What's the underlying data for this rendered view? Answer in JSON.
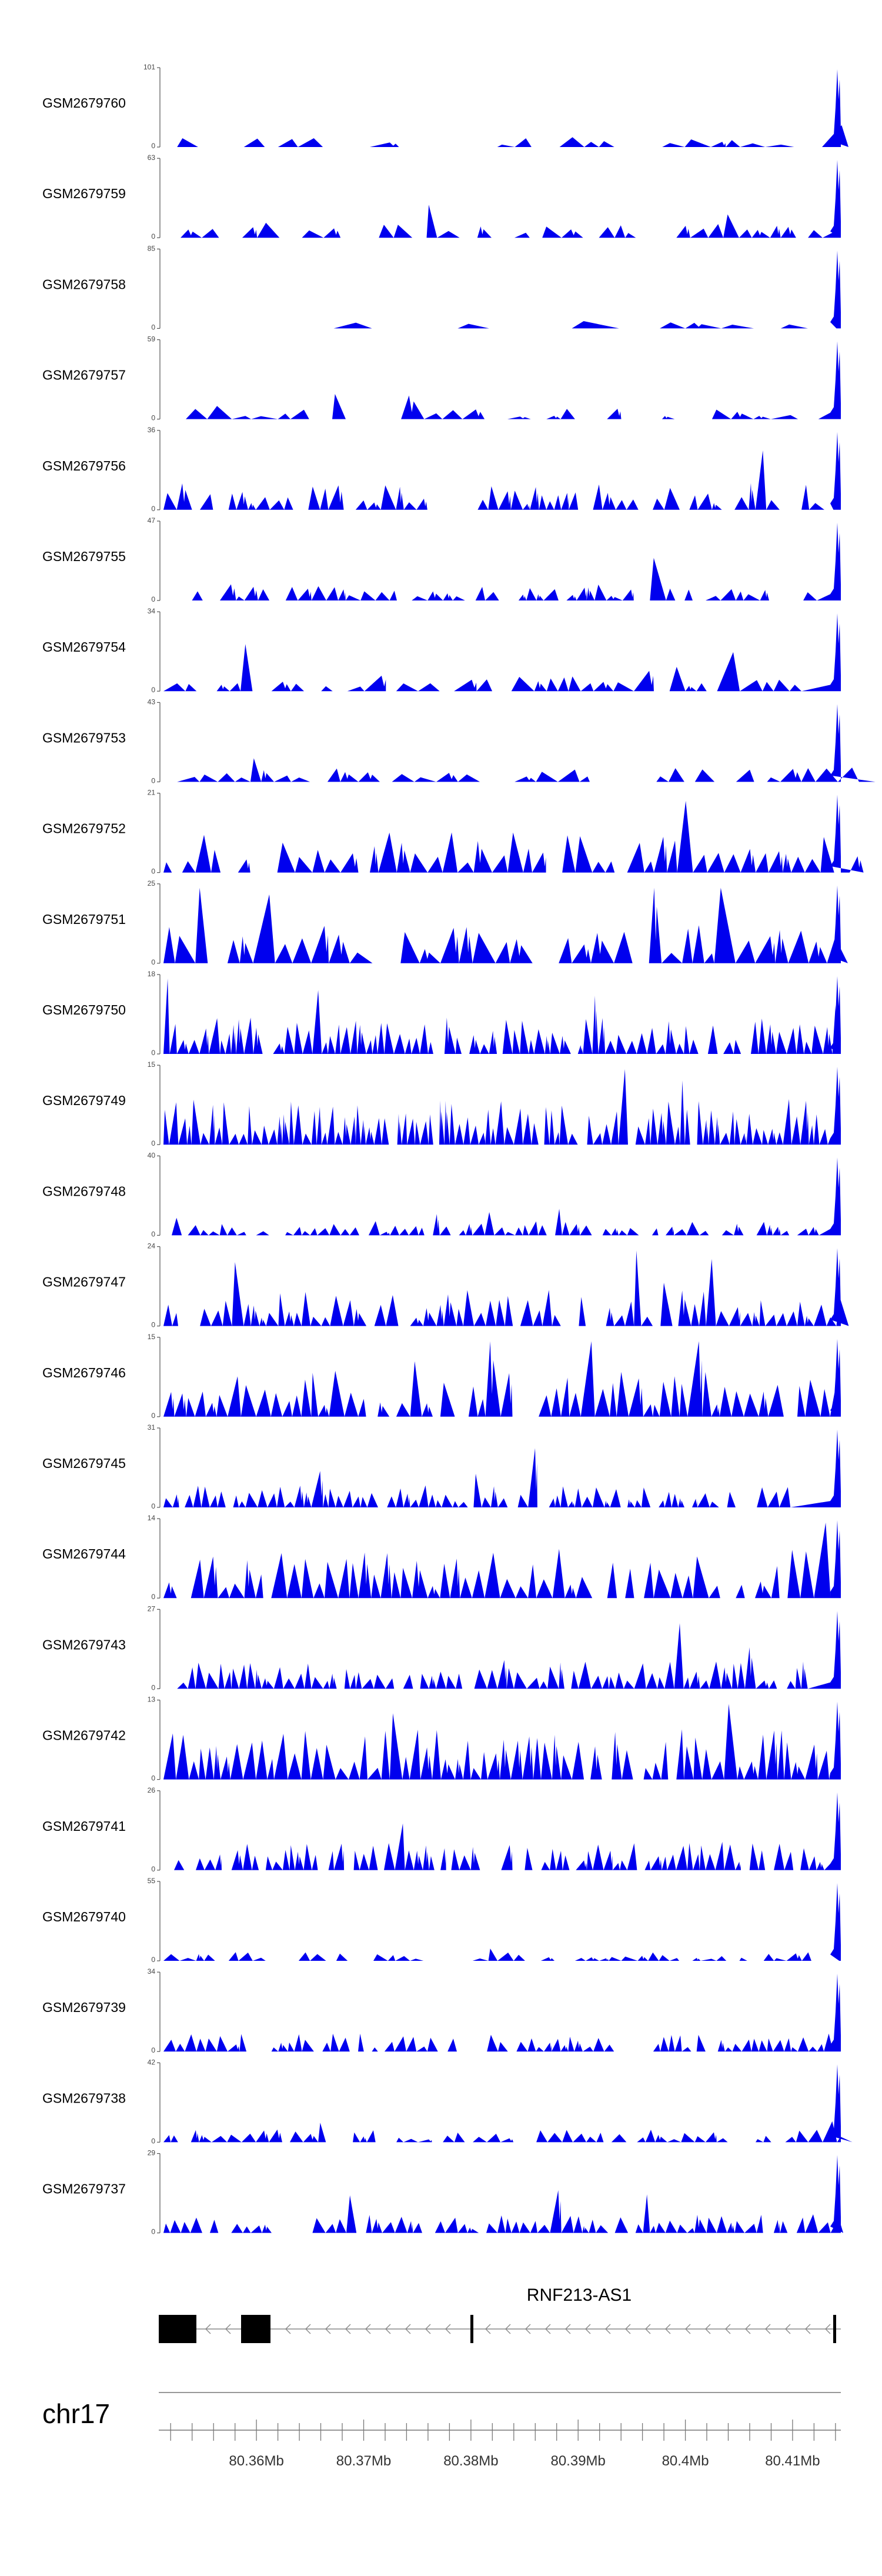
{
  "chart_data": {
    "type": "area",
    "x_range_bp": [
      80351000,
      80414500
    ],
    "tracks": [
      {
        "name": "GSM2679760",
        "ymax": "101",
        "ymin": "0",
        "max": 101,
        "seed": 1,
        "density": 30,
        "sparsity": 0.5,
        "amp": 0.1,
        "start": 0.02
      },
      {
        "name": "GSM2679759",
        "ymax": "63",
        "ymin": "0",
        "max": 63,
        "seed": 2,
        "density": 40,
        "sparsity": 0.3,
        "amp": 0.18,
        "start": 0.0
      },
      {
        "name": "GSM2679758",
        "ymax": "85",
        "ymin": "0",
        "max": 85,
        "seed": 3,
        "density": 14,
        "sparsity": 0.6,
        "amp": 0.08,
        "start": 0.25
      },
      {
        "name": "GSM2679757",
        "ymax": "59",
        "ymin": "0",
        "max": 59,
        "seed": 4,
        "density": 34,
        "sparsity": 0.4,
        "amp": 0.12,
        "start": 0.0
      },
      {
        "name": "GSM2679756",
        "ymax": "36",
        "ymin": "0",
        "max": 36,
        "seed": 5,
        "density": 60,
        "sparsity": 0.2,
        "amp": 0.3,
        "start": 0.0
      },
      {
        "name": "GSM2679755",
        "ymax": "47",
        "ymin": "0",
        "max": 47,
        "seed": 6,
        "density": 55,
        "sparsity": 0.25,
        "amp": 0.18,
        "start": 0.02
      },
      {
        "name": "GSM2679754",
        "ymax": "34",
        "ymin": "0",
        "max": 34,
        "seed": 7,
        "density": 40,
        "sparsity": 0.2,
        "amp": 0.2,
        "start": 0.0
      },
      {
        "name": "GSM2679753",
        "ymax": "43",
        "ymin": "0",
        "max": 43,
        "seed": 8,
        "density": 40,
        "sparsity": 0.3,
        "amp": 0.16,
        "start": 0.02
      },
      {
        "name": "GSM2679752",
        "ymax": "21",
        "ymin": "0",
        "max": 21,
        "seed": 9,
        "density": 50,
        "sparsity": 0.15,
        "amp": 0.45,
        "start": 0.0
      },
      {
        "name": "GSM2679751",
        "ymax": "25",
        "ymin": "0",
        "max": 25,
        "seed": 10,
        "density": 40,
        "sparsity": 0.15,
        "amp": 0.42,
        "start": 0.0
      },
      {
        "name": "GSM2679750",
        "ymax": "18",
        "ymin": "0",
        "max": 18,
        "seed": 11,
        "density": 80,
        "sparsity": 0.1,
        "amp": 0.4,
        "start": 0.0
      },
      {
        "name": "GSM2679749",
        "ymax": "15",
        "ymin": "0",
        "max": 15,
        "seed": 12,
        "density": 95,
        "sparsity": 0.05,
        "amp": 0.5,
        "start": 0.0
      },
      {
        "name": "GSM2679748",
        "ymax": "40",
        "ymin": "0",
        "max": 40,
        "seed": 13,
        "density": 70,
        "sparsity": 0.2,
        "amp": 0.16,
        "start": 0.0
      },
      {
        "name": "GSM2679747",
        "ymax": "24",
        "ymin": "0",
        "max": 24,
        "seed": 14,
        "density": 70,
        "sparsity": 0.15,
        "amp": 0.4,
        "start": 0.0
      },
      {
        "name": "GSM2679746",
        "ymax": "15",
        "ymin": "0",
        "max": 15,
        "seed": 15,
        "density": 60,
        "sparsity": 0.1,
        "amp": 0.55,
        "start": 0.0
      },
      {
        "name": "GSM2679745",
        "ymax": "31",
        "ymin": "0",
        "max": 31,
        "seed": 16,
        "density": 75,
        "sparsity": 0.2,
        "amp": 0.25,
        "start": 0.0
      },
      {
        "name": "GSM2679744",
        "ymax": "14",
        "ymin": "0",
        "max": 14,
        "seed": 17,
        "density": 55,
        "sparsity": 0.1,
        "amp": 0.55,
        "start": 0.0
      },
      {
        "name": "GSM2679743",
        "ymax": "27",
        "ymin": "0",
        "max": 27,
        "seed": 18,
        "density": 70,
        "sparsity": 0.15,
        "amp": 0.3,
        "start": 0.02
      },
      {
        "name": "GSM2679742",
        "ymax": "13",
        "ymin": "0",
        "max": 13,
        "seed": 19,
        "density": 65,
        "sparsity": 0.05,
        "amp": 0.55,
        "start": 0.0
      },
      {
        "name": "GSM2679741",
        "ymax": "26",
        "ymin": "0",
        "max": 26,
        "seed": 20,
        "density": 80,
        "sparsity": 0.15,
        "amp": 0.3,
        "start": 0.0
      },
      {
        "name": "GSM2679740",
        "ymax": "55",
        "ymin": "0",
        "max": 55,
        "seed": 21,
        "density": 55,
        "sparsity": 0.3,
        "amp": 0.1,
        "start": 0.0
      },
      {
        "name": "GSM2679739",
        "ymax": "34",
        "ymin": "0",
        "max": 34,
        "seed": 22,
        "density": 75,
        "sparsity": 0.2,
        "amp": 0.2,
        "start": 0.0
      },
      {
        "name": "GSM2679738",
        "ymax": "42",
        "ymin": "0",
        "max": 42,
        "seed": 23,
        "density": 60,
        "sparsity": 0.25,
        "amp": 0.14,
        "start": 0.0
      },
      {
        "name": "GSM2679737",
        "ymax": "29",
        "ymin": "0",
        "max": 29,
        "seed": 24,
        "density": 70,
        "sparsity": 0.2,
        "amp": 0.22,
        "start": 0.0
      }
    ],
    "gene": {
      "label": "RNF213-AS1",
      "strand": "-"
    },
    "chromosome": "chr17",
    "x_ticks": [
      {
        "pos": 80360000,
        "label": "80.36Mb"
      },
      {
        "pos": 80370000,
        "label": "80.37Mb"
      },
      {
        "pos": 80380000,
        "label": "80.38Mb"
      },
      {
        "pos": 80390000,
        "label": "80.39Mb"
      },
      {
        "pos": 80400000,
        "label": "80.4Mb"
      },
      {
        "pos": 80410000,
        "label": "80.41Mb"
      }
    ],
    "colors": {
      "fill": "#0000ee",
      "axis": "#555555",
      "exon": "#000000"
    }
  }
}
